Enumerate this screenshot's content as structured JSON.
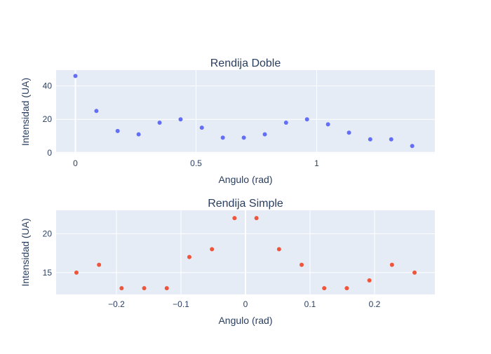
{
  "chart_data": [
    {
      "type": "scatter",
      "title": "Rendija Doble",
      "xlabel": "Angulo (rad)",
      "ylabel": "Intensidad (UA)",
      "xlim": [
        -0.08,
        1.49
      ],
      "ylim": [
        -0.5,
        49.5
      ],
      "xticks": [
        0,
        0.5,
        1
      ],
      "xtick_labels": [
        "0",
        "0.5",
        "1"
      ],
      "yticks": [
        0,
        20,
        40
      ],
      "ytick_labels": [
        "0",
        "20",
        "40"
      ],
      "grid": true,
      "marker_color": "#636efa",
      "series": [
        {
          "x": [
            0,
            0.087,
            0.175,
            0.262,
            0.349,
            0.436,
            0.524,
            0.611,
            0.698,
            0.785,
            0.873,
            0.96,
            1.047,
            1.134,
            1.222,
            1.309,
            1.396
          ],
          "y": [
            46,
            25,
            13,
            11,
            18,
            20,
            15,
            9,
            9,
            11,
            18,
            20,
            17,
            12,
            8,
            8,
            4
          ]
        }
      ]
    },
    {
      "type": "scatter",
      "title": "Rendija Simple",
      "xlabel": "Angulo (rad)",
      "ylabel": "Intensidad (UA)",
      "xlim": [
        -0.2935,
        0.2935
      ],
      "ylim": [
        12.2,
        23
      ],
      "xticks": [
        -0.2,
        -0.1,
        0,
        0.1,
        0.2
      ],
      "xtick_labels": [
        "−0.2",
        "−0.1",
        "0",
        "0.1",
        "0.2"
      ],
      "yticks": [
        15,
        20
      ],
      "ytick_labels": [
        "15",
        "20"
      ],
      "grid": true,
      "marker_color": "#ef553b",
      "series": [
        {
          "x": [
            -0.262,
            -0.227,
            -0.192,
            -0.157,
            -0.122,
            -0.087,
            -0.052,
            -0.017,
            0.017,
            0.052,
            0.087,
            0.122,
            0.157,
            0.192,
            0.227,
            0.262
          ],
          "y": [
            15,
            16,
            13,
            13,
            13,
            17,
            18,
            22,
            22,
            18,
            16,
            13,
            13,
            14,
            16,
            15
          ]
        }
      ]
    }
  ]
}
